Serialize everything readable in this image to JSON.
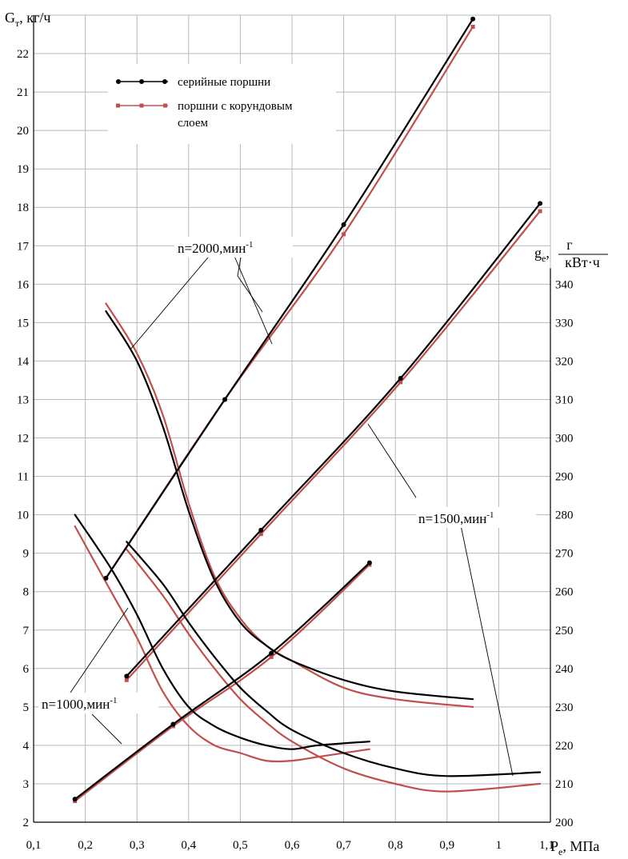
{
  "chart_data": {
    "type": "line",
    "x_axis": {
      "label_main": "P",
      "label_sub": "e",
      "label_rest": ", МПа",
      "range": [
        0.1,
        1.1
      ],
      "ticks": [
        "0,1",
        "0,2",
        "0,3",
        "0,4",
        "0,5",
        "0,6",
        "0,7",
        "0,8",
        "0,9",
        "1",
        "1,1"
      ]
    },
    "y_left": {
      "label_main": "G",
      "label_sub": "т",
      "label_rest": ", кг/ч",
      "range": [
        2,
        23
      ],
      "ticks": [
        "2",
        "3",
        "4",
        "5",
        "6",
        "7",
        "8",
        "9",
        "10",
        "11",
        "12",
        "13",
        "14",
        "15",
        "16",
        "17",
        "18",
        "19",
        "20",
        "21",
        "22"
      ]
    },
    "y_right": {
      "label_main": "g",
      "label_sub": "e",
      "label_frac_num": "г",
      "label_frac_den": "кВт·ч",
      "range": [
        200,
        340
      ],
      "ticks": [
        "200",
        "210",
        "220",
        "230",
        "240",
        "250",
        "260",
        "270",
        "280",
        "290",
        "300",
        "310",
        "320",
        "330",
        "340"
      ]
    },
    "grid": true,
    "legend": {
      "placement": "top-left",
      "items": [
        {
          "label": "серийные поршни",
          "color": "#000000",
          "marker": "circle"
        },
        {
          "label_line1": "поршни с корундовым",
          "label_line2": "слоем",
          "color": "#c0504d",
          "marker": "square"
        }
      ]
    },
    "annotations": [
      {
        "text": "n=2000,мин",
        "sup": "-1"
      },
      {
        "text": "n=1500,мин",
        "sup": "-1"
      },
      {
        "text": "n=1000,мин",
        "sup": "-1"
      }
    ],
    "series": [
      {
        "name": "серийные поршни",
        "n": 2000,
        "quantity": "Gт",
        "axis": "left",
        "color": "#000000",
        "x": [
          0.24,
          0.47,
          0.7,
          0.95
        ],
        "y": [
          8.35,
          13.0,
          17.55,
          22.9
        ]
      },
      {
        "name": "поршни с корундовым слоем",
        "n": 2000,
        "quantity": "Gт",
        "axis": "left",
        "color": "#c0504d",
        "x": [
          0.24,
          0.47,
          0.7,
          0.95
        ],
        "y": [
          8.35,
          13.0,
          17.3,
          22.7
        ]
      },
      {
        "name": "серийные поршни",
        "n": 1500,
        "quantity": "Gт",
        "axis": "left",
        "color": "#000000",
        "x": [
          0.28,
          0.54,
          0.81,
          1.08
        ],
        "y": [
          5.8,
          9.6,
          13.55,
          18.1
        ]
      },
      {
        "name": "поршни с корундовым слоем",
        "n": 1500,
        "quantity": "Gт",
        "axis": "left",
        "color": "#c0504d",
        "x": [
          0.28,
          0.54,
          0.81,
          1.08
        ],
        "y": [
          5.7,
          9.5,
          13.45,
          17.9
        ]
      },
      {
        "name": "серийные поршни",
        "n": 1000,
        "quantity": "Gт",
        "axis": "left",
        "color": "#000000",
        "x": [
          0.18,
          0.37,
          0.56,
          0.75
        ],
        "y": [
          2.6,
          4.55,
          6.4,
          8.75
        ]
      },
      {
        "name": "поршни с корундовым слоем",
        "n": 1000,
        "quantity": "Gт",
        "axis": "left",
        "color": "#c0504d",
        "x": [
          0.18,
          0.37,
          0.56,
          0.75
        ],
        "y": [
          2.55,
          4.5,
          6.3,
          8.7
        ]
      },
      {
        "name": "серийные поршни",
        "n": 2000,
        "quantity": "ge",
        "axis": "right",
        "color": "#000000",
        "x": [
          0.24,
          0.3,
          0.35,
          0.4,
          0.45,
          0.5,
          0.55,
          0.6,
          0.7,
          0.8,
          0.95
        ],
        "y": [
          333,
          320,
          303,
          281,
          263,
          252,
          246,
          242,
          237,
          234,
          232
        ]
      },
      {
        "name": "поршни с корундовым слоем",
        "n": 2000,
        "quantity": "ge",
        "axis": "right",
        "color": "#c0504d",
        "x": [
          0.24,
          0.3,
          0.35,
          0.4,
          0.45,
          0.5,
          0.55,
          0.6,
          0.7,
          0.8,
          0.95
        ],
        "y": [
          335,
          322,
          306,
          283,
          264,
          253,
          246,
          242,
          235,
          232,
          230
        ]
      },
      {
        "name": "серийные поршни",
        "n": 1500,
        "quantity": "ge",
        "axis": "right",
        "color": "#000000",
        "x": [
          0.28,
          0.35,
          0.4,
          0.45,
          0.5,
          0.55,
          0.6,
          0.7,
          0.8,
          0.9,
          1.08
        ],
        "y": [
          273,
          262,
          252,
          243,
          235,
          229,
          224,
          218,
          214,
          212,
          213
        ]
      },
      {
        "name": "поршни с корундовым слоем",
        "n": 1500,
        "quantity": "ge",
        "axis": "right",
        "color": "#c0504d",
        "x": [
          0.28,
          0.35,
          0.4,
          0.45,
          0.5,
          0.55,
          0.6,
          0.7,
          0.8,
          0.9,
          1.08
        ],
        "y": [
          271,
          259,
          249,
          240,
          232,
          226,
          221,
          214,
          210,
          208,
          210
        ]
      },
      {
        "name": "серийные поршни",
        "n": 1000,
        "quantity": "ge",
        "axis": "right",
        "color": "#000000",
        "x": [
          0.18,
          0.25,
          0.3,
          0.35,
          0.4,
          0.45,
          0.5,
          0.55,
          0.6,
          0.65,
          0.75
        ],
        "y": [
          280,
          266,
          254,
          240,
          230,
          225,
          222,
          220,
          219,
          220,
          221
        ]
      },
      {
        "name": "поршни с корундовым слоем",
        "n": 1000,
        "quantity": "ge",
        "axis": "right",
        "color": "#c0504d",
        "x": [
          0.18,
          0.25,
          0.3,
          0.35,
          0.4,
          0.45,
          0.5,
          0.55,
          0.6,
          0.65,
          0.75
        ],
        "y": [
          277,
          260,
          248,
          234,
          225,
          220,
          218,
          216,
          216,
          217,
          219
        ]
      }
    ]
  }
}
